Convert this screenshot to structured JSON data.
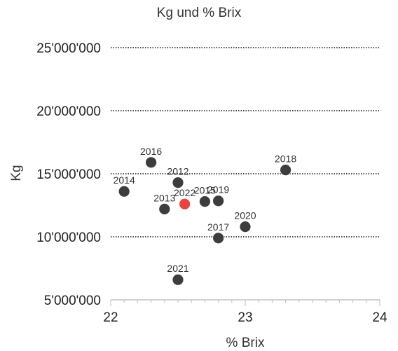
{
  "chart_data": {
    "type": "scatter",
    "title": "Kg und % Brix",
    "xlabel": "% Brix",
    "ylabel": "Kg",
    "xlim": [
      22,
      24
    ],
    "ylim": [
      5000000,
      25000000
    ],
    "x_ticks": [
      22,
      23,
      24
    ],
    "x_tick_labels": [
      "22",
      "23",
      "24"
    ],
    "y_ticks": [
      5000000,
      10000000,
      15000000,
      20000000,
      25000000
    ],
    "y_tick_labels": [
      "5'000'000",
      "10'000'000",
      "15'000'000",
      "20'000'000",
      "25'000'000"
    ],
    "grid": "horizontal dotted",
    "points": [
      {
        "label": "2012",
        "x": 22.5,
        "y": 14300000
      },
      {
        "label": "2013",
        "x": 22.4,
        "y": 12200000
      },
      {
        "label": "2014",
        "x": 22.1,
        "y": 13600000
      },
      {
        "label": "2015",
        "x": 22.7,
        "y": 12800000
      },
      {
        "label": "2016",
        "x": 22.3,
        "y": 15900000
      },
      {
        "label": "2017",
        "x": 22.8,
        "y": 9900000
      },
      {
        "label": "2018",
        "x": 23.3,
        "y": 15300000
      },
      {
        "label": "2019",
        "x": 22.8,
        "y": 12850000
      },
      {
        "label": "2020",
        "x": 23.0,
        "y": 10800000
      },
      {
        "label": "2021",
        "x": 22.5,
        "y": 6600000
      },
      {
        "label": "2022",
        "x": 22.55,
        "y": 12600000,
        "highlight": true
      }
    ],
    "colors": {
      "point": "#3a3a3a",
      "highlight": "#e8413e",
      "grid": "#111111",
      "axis": "#bbbbbb"
    }
  }
}
